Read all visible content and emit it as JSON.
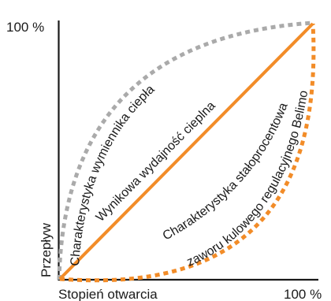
{
  "labels": {
    "y_top": "100 %",
    "y_axis": "Przepływ",
    "x_axis": "Stopień otwarcia",
    "x_right": "100 %"
  },
  "curves": {
    "heat_exchanger": "Charakterystyka wymiennika ciepła",
    "resulting_output": "Wynikowa wydajność cieplna",
    "equal_percentage_line1": "Charakterystyka stałoprocentowa",
    "equal_percentage_line2": "zaworu kulowego regulacyjnego Belimo"
  },
  "colors": {
    "axis": "#1a1a1a",
    "heat_exchanger_curve": "#aaaaaa",
    "output_line": "#f28c28",
    "valve_curve": "#f28c28"
  }
}
